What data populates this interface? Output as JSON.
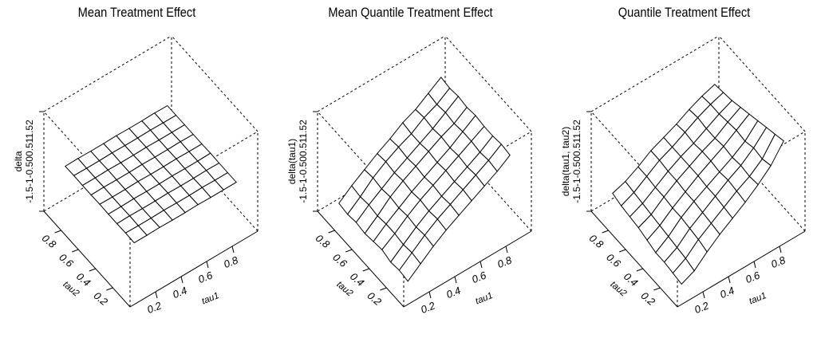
{
  "chart_data": [
    {
      "type": "surface",
      "title": "Mean Treatment Effect",
      "x": [
        0.1,
        0.2,
        0.3,
        0.4,
        0.5,
        0.6,
        0.7,
        0.8,
        0.9
      ],
      "y": [
        0.1,
        0.2,
        0.3,
        0.4,
        0.5,
        0.6,
        0.7,
        0.8,
        0.9
      ],
      "xlabel": "tau1",
      "ylabel": "tau2",
      "zlabel": "delta",
      "xticks": [
        "0.2",
        "0.4",
        "0.6",
        "0.8"
      ],
      "yticks": [
        "0.2",
        "0.4",
        "0.6",
        "0.8"
      ],
      "zticks_label": "-1.5-1-0.500.511.52",
      "zlim": [
        -1.5,
        2
      ],
      "z": [
        [
          0.15,
          0.15,
          0.16,
          0.15,
          0.15,
          0.16,
          0.15,
          0.15,
          0.15
        ],
        [
          0.16,
          0.15,
          0.15,
          0.16,
          0.15,
          0.15,
          0.16,
          0.15,
          0.15
        ],
        [
          0.15,
          0.16,
          0.15,
          0.15,
          0.16,
          0.15,
          0.15,
          0.16,
          0.15
        ],
        [
          0.15,
          0.15,
          0.16,
          0.15,
          0.15,
          0.16,
          0.15,
          0.15,
          0.16
        ],
        [
          0.16,
          0.15,
          0.15,
          0.16,
          0.15,
          0.15,
          0.16,
          0.15,
          0.15
        ],
        [
          0.15,
          0.16,
          0.15,
          0.15,
          0.16,
          0.15,
          0.15,
          0.16,
          0.15
        ],
        [
          0.15,
          0.15,
          0.16,
          0.15,
          0.15,
          0.16,
          0.15,
          0.15,
          0.15
        ],
        [
          0.16,
          0.15,
          0.15,
          0.16,
          0.15,
          0.15,
          0.16,
          0.15,
          0.15
        ],
        [
          0.15,
          0.16,
          0.15,
          0.15,
          0.16,
          0.15,
          0.15,
          0.16,
          0.15
        ]
      ]
    },
    {
      "type": "surface",
      "title": "Mean Quantile Treatment Effect",
      "x": [
        0.1,
        0.2,
        0.3,
        0.4,
        0.5,
        0.6,
        0.7,
        0.8,
        0.9
      ],
      "y": [
        0.1,
        0.2,
        0.3,
        0.4,
        0.5,
        0.6,
        0.7,
        0.8,
        0.9
      ],
      "xlabel": "tau1",
      "ylabel": "tau2",
      "zlabel": "delta(tau1)",
      "xticks": [
        "0.2",
        "0.4",
        "0.6",
        "0.8"
      ],
      "yticks": [
        "0.2",
        "0.4",
        "0.6",
        "0.8"
      ],
      "zticks_label": "-1.5-1-0.500.511.52",
      "zlim": [
        -1.5,
        2
      ],
      "z": [
        [
          -1.2,
          -0.85,
          -0.5,
          -0.2,
          0.05,
          0.3,
          0.55,
          0.8,
          1.1
        ],
        [
          -1.15,
          -0.8,
          -0.45,
          -0.15,
          0.1,
          0.35,
          0.6,
          0.85,
          1.15
        ],
        [
          -1.2,
          -0.85,
          -0.5,
          -0.2,
          0.05,
          0.3,
          0.55,
          0.8,
          1.1
        ],
        [
          -1.1,
          -0.8,
          -0.45,
          -0.15,
          0.1,
          0.35,
          0.6,
          0.85,
          1.1
        ],
        [
          -1.15,
          -0.8,
          -0.5,
          -0.2,
          0.05,
          0.3,
          0.55,
          0.85,
          1.15
        ],
        [
          -1.2,
          -0.85,
          -0.45,
          -0.15,
          0.1,
          0.35,
          0.6,
          0.8,
          1.1
        ],
        [
          -1.15,
          -0.8,
          -0.5,
          -0.2,
          0.05,
          0.3,
          0.55,
          0.85,
          1.15
        ],
        [
          -1.2,
          -0.85,
          -0.45,
          -0.15,
          0.1,
          0.3,
          0.6,
          0.8,
          1.1
        ],
        [
          -1.15,
          -0.8,
          -0.5,
          -0.2,
          0.05,
          0.35,
          0.55,
          0.85,
          1.15
        ]
      ]
    },
    {
      "type": "surface",
      "title": "Quantile Treatment Effect",
      "x": [
        0.1,
        0.2,
        0.3,
        0.4,
        0.5,
        0.6,
        0.7,
        0.8,
        0.9
      ],
      "y": [
        0.1,
        0.2,
        0.3,
        0.4,
        0.5,
        0.6,
        0.7,
        0.8,
        0.9
      ],
      "xlabel": "tau1",
      "ylabel": "tau2",
      "zlabel": "delta(tau1, tau2)",
      "xticks": [
        "0.2",
        "0.4",
        "0.6",
        "0.8"
      ],
      "yticks": [
        "0.2",
        "0.4",
        "0.6",
        "0.8"
      ],
      "zticks_label": "-1.5-1-0.500.511.52",
      "zlim": [
        -1.5,
        2
      ],
      "z": [
        [
          -1.3,
          -1.1,
          -0.7,
          -0.35,
          -0.05,
          0.25,
          0.6,
          1.0,
          1.6
        ],
        [
          -1.25,
          -1.0,
          -0.6,
          -0.3,
          0.0,
          0.3,
          0.55,
          0.9,
          1.5
        ],
        [
          -1.2,
          -0.95,
          -0.55,
          -0.25,
          0.05,
          0.35,
          0.6,
          0.95,
          1.4
        ],
        [
          -1.2,
          -0.9,
          -0.5,
          -0.2,
          0.05,
          0.3,
          0.55,
          0.85,
          1.3
        ],
        [
          -1.1,
          -0.85,
          -0.5,
          -0.2,
          0.1,
          0.35,
          0.6,
          0.9,
          1.2
        ],
        [
          -1.0,
          -0.8,
          -0.45,
          -0.15,
          0.1,
          0.35,
          0.55,
          0.85,
          1.1
        ],
        [
          -0.95,
          -0.75,
          -0.45,
          -0.15,
          0.1,
          0.3,
          0.55,
          0.8,
          1.0
        ],
        [
          -0.9,
          -0.7,
          -0.4,
          -0.1,
          0.1,
          0.35,
          0.6,
          0.8,
          0.95
        ],
        [
          -0.8,
          -0.65,
          -0.4,
          -0.1,
          0.1,
          0.3,
          0.55,
          0.75,
          0.9
        ]
      ]
    }
  ]
}
